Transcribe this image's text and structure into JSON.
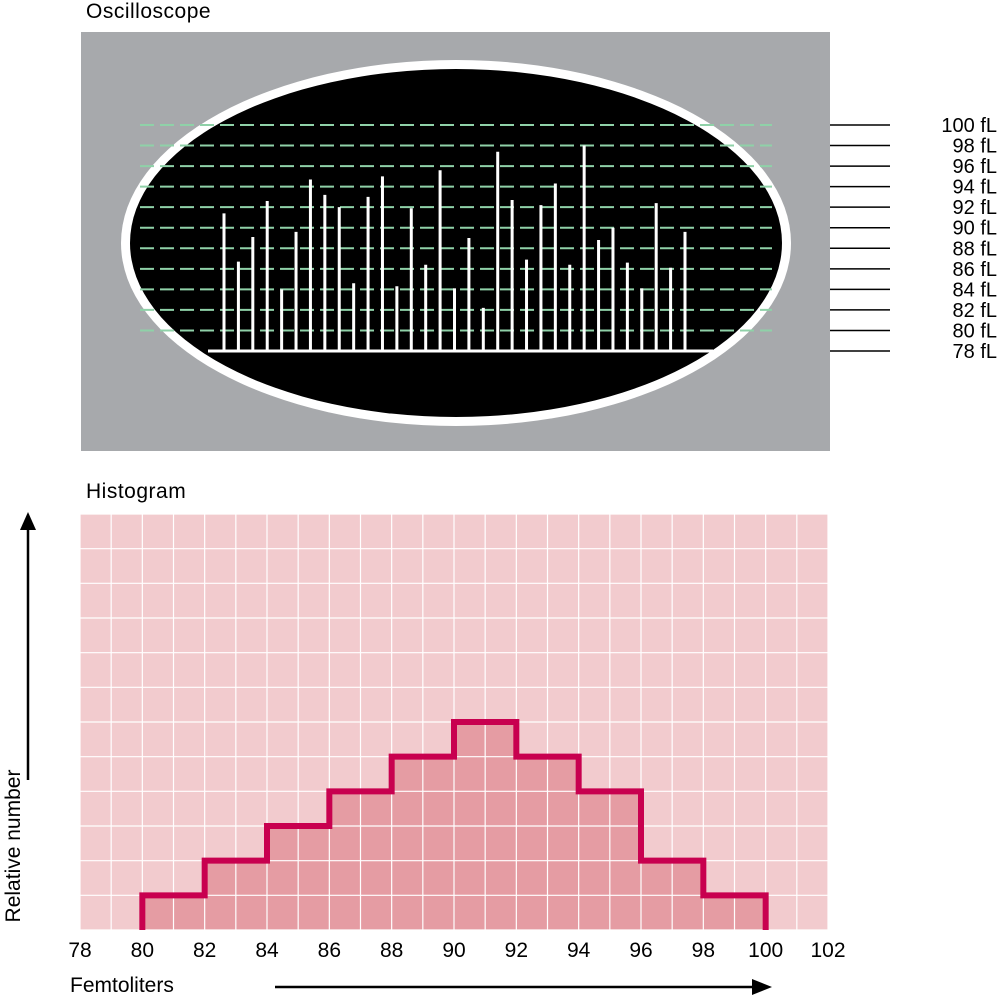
{
  "oscilloscope": {
    "title": "Oscilloscope",
    "scale_labels": [
      "100 fL",
      "98 fL",
      "96 fL",
      "94 fL",
      "92 fL",
      "90 fL",
      "88 fL",
      "86 fL",
      "84 fL",
      "82 fL",
      "80 fL",
      "78 fL"
    ],
    "scale_values": [
      100,
      98,
      96,
      94,
      92,
      90,
      88,
      86,
      84,
      82,
      80,
      78
    ],
    "pulses_fL": [
      91.4,
      86.7,
      89.1,
      92.6,
      84.0,
      89.6,
      94.7,
      93.2,
      92.0,
      84.6,
      93.0,
      95.0,
      84.3,
      91.9,
      86.4,
      95.6,
      84.1,
      89.0,
      82.2,
      97.4,
      92.7,
      86.9,
      92.2,
      94.3,
      86.4,
      98.0,
      88.8,
      90.0,
      86.6,
      84.1,
      92.4,
      86.1,
      89.6
    ]
  },
  "histogram": {
    "title": "Histogram"
  },
  "chart_data": {
    "type": "bar",
    "title": "Histogram",
    "xlabel": "Femtoliters",
    "ylabel": "Relative number",
    "x_ticks": [
      78,
      80,
      82,
      84,
      86,
      88,
      90,
      92,
      94,
      96,
      98,
      100,
      102
    ],
    "xlim": [
      78,
      102
    ],
    "ylim": [
      0,
      12
    ],
    "bins": [
      {
        "from": 80,
        "to": 82,
        "value": 1
      },
      {
        "from": 82,
        "to": 84,
        "value": 2
      },
      {
        "from": 84,
        "to": 86,
        "value": 3
      },
      {
        "from": 86,
        "to": 88,
        "value": 4
      },
      {
        "from": 88,
        "to": 90,
        "value": 5
      },
      {
        "from": 90,
        "to": 92,
        "value": 6
      },
      {
        "from": 92,
        "to": 94,
        "value": 5
      },
      {
        "from": 94,
        "to": 96,
        "value": 4
      },
      {
        "from": 96,
        "to": 98,
        "value": 2
      },
      {
        "from": 98,
        "to": 100,
        "value": 1
      }
    ],
    "grid": true
  },
  "colors": {
    "screen_bg": "#a7a9ac",
    "screen": "#000000",
    "trace": "#ffffff",
    "dash": "#8fd1a8",
    "plot_bg": "#f2cbce",
    "bar_fill": "#e59ca3",
    "bar_outline": "#c8004f",
    "grid": "#ffffff"
  }
}
